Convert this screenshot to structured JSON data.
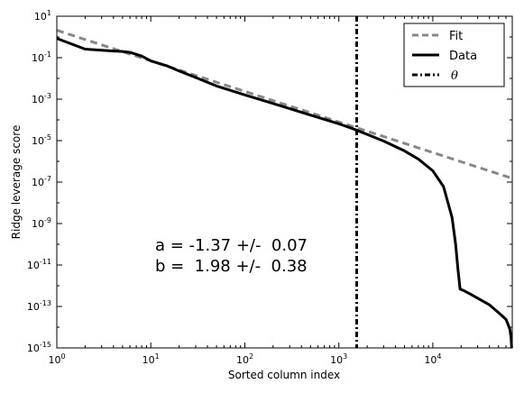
{
  "chart_data": {
    "type": "line",
    "title": "",
    "xlabel": "Sorted column index",
    "ylabel": "Ridge leverage score",
    "xscale": "log",
    "yscale": "log",
    "xlim": [
      1,
      70000
    ],
    "ylim": [
      1e-15,
      10
    ],
    "x_ticks": [
      {
        "value": 1,
        "base": "10",
        "exp": "0"
      },
      {
        "value": 10,
        "base": "10",
        "exp": "1"
      },
      {
        "value": 100,
        "base": "10",
        "exp": "2"
      },
      {
        "value": 1000,
        "base": "10",
        "exp": "3"
      },
      {
        "value": 10000,
        "base": "10",
        "exp": "4"
      }
    ],
    "y_ticks": [
      {
        "value": 1e-15,
        "base": "10",
        "exp": "-15"
      },
      {
        "value": 1e-13,
        "base": "10",
        "exp": "-13"
      },
      {
        "value": 1e-11,
        "base": "10",
        "exp": "-11"
      },
      {
        "value": 1e-09,
        "base": "10",
        "exp": "-9"
      },
      {
        "value": 1e-07,
        "base": "10",
        "exp": "-7"
      },
      {
        "value": 1e-05,
        "base": "10",
        "exp": "-5"
      },
      {
        "value": 0.001,
        "base": "10",
        "exp": "-3"
      },
      {
        "value": 0.1,
        "base": "10",
        "exp": "-1"
      },
      {
        "value": 10,
        "base": "10",
        "exp": "1"
      }
    ],
    "grid": false,
    "legend_position": "top-right",
    "series": [
      {
        "name": "Fit",
        "style": "dashed",
        "color": "#888888",
        "x": [
          1,
          70000
        ],
        "y": [
          2.1,
          1.5e-07
        ]
      },
      {
        "name": "Data",
        "style": "solid",
        "color": "#000000",
        "x": [
          1,
          2,
          3,
          4,
          5,
          6,
          8,
          10,
          15,
          20,
          30,
          50,
          100,
          200,
          500,
          1000,
          1500,
          2000,
          3000,
          5000,
          7000,
          10000,
          13000,
          16000,
          17500,
          18500,
          19000,
          19500,
          21000,
          25000,
          30000,
          40000,
          50000,
          60000,
          63000,
          66000,
          68000,
          69000
        ],
        "y": [
          0.85,
          0.26,
          0.23,
          0.21,
          0.2,
          0.18,
          0.12,
          0.07,
          0.04,
          0.023,
          0.011,
          0.0043,
          0.0016,
          0.00062,
          0.00017,
          6.5e-05,
          3.4e-05,
          2e-05,
          9.5e-06,
          3.2e-06,
          1.3e-06,
          3.5e-07,
          6e-08,
          2e-09,
          1e-10,
          6e-12,
          2e-12,
          7e-13,
          6e-13,
          4e-13,
          2.5e-13,
          1.2e-13,
          5e-14,
          2.4e-14,
          1.4e-14,
          8e-15,
          3e-15,
          1e-15
        ]
      },
      {
        "name": "θ",
        "style": "dashdot",
        "color": "#000000",
        "vertical_x": 1550
      }
    ],
    "annotations": [
      "a = -1.37 +/-  0.07",
      "b =  1.98 +/-  0.38"
    ]
  }
}
